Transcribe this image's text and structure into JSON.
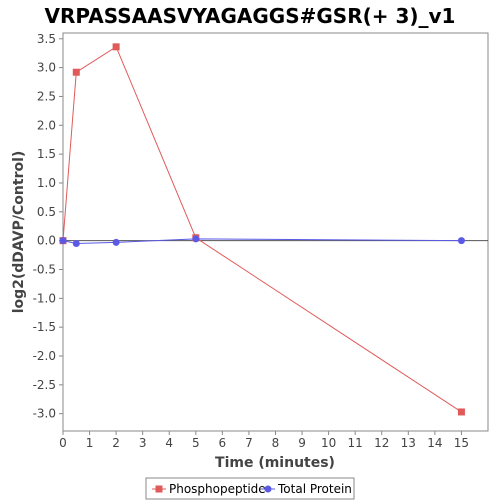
{
  "chart_data": {
    "type": "line",
    "title": "VRPASSAASVYAGAGGS#GSR(+ 3)_v1",
    "xlabel": "Time (minutes)",
    "ylabel": "log2(dDAVP/Control)",
    "xlim": [
      0,
      16
    ],
    "ylim": [
      -3.3,
      3.6
    ],
    "x_ticks": [
      0,
      1,
      2,
      3,
      4,
      5,
      6,
      7,
      8,
      9,
      10,
      11,
      12,
      13,
      14,
      15
    ],
    "y_ticks": [
      3.5,
      3.0,
      2.5,
      2.0,
      1.5,
      1.0,
      0.5,
      0.0,
      -0.5,
      -1.0,
      -1.5,
      -2.0,
      -2.5,
      -3.0
    ],
    "y_tick_labels": [
      "3.5",
      "3.0",
      "2.5",
      "2.0",
      "1.5",
      "1.0",
      "0.5",
      "0.0",
      "-0.5",
      "-1.0",
      "-1.5",
      "-2.0",
      "-2.5",
      "-3.0"
    ],
    "zero_line": true,
    "grid": false,
    "legend_position": "bottom",
    "series": [
      {
        "name": "Phosphopeptide",
        "color": "#e05a5a",
        "marker": "square",
        "x": [
          0,
          0.5,
          2,
          5,
          15
        ],
        "y": [
          0.0,
          2.92,
          3.36,
          0.05,
          -2.97
        ]
      },
      {
        "name": "Total Protein",
        "color": "#5a5ae6",
        "marker": "circle",
        "x": [
          0,
          0.5,
          2,
          5,
          15
        ],
        "y": [
          0.0,
          -0.05,
          -0.03,
          0.03,
          0.0
        ]
      }
    ]
  }
}
